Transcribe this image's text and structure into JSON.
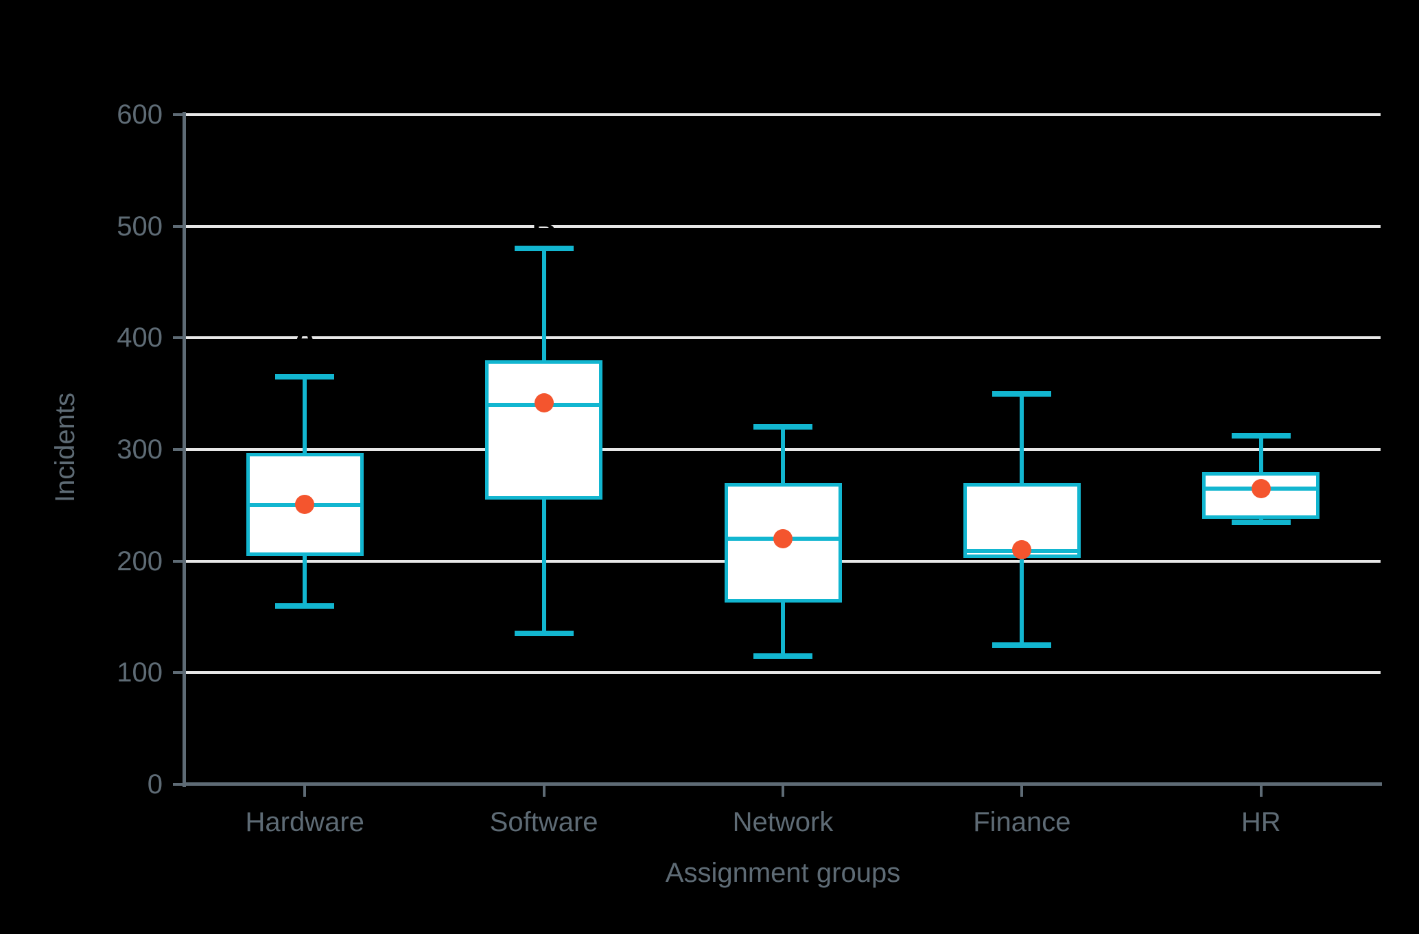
{
  "figure": {
    "background": "#000000",
    "ylabel": "Incidents",
    "xlabel": "Assignment groups"
  },
  "chart_data": {
    "type": "boxplot",
    "categories": [
      "Hardware",
      "Software",
      "Network",
      "Finance",
      "HR"
    ],
    "series": [
      {
        "name": "Hardware",
        "min": 160,
        "q1": 205,
        "median": 250,
        "q3": 297,
        "max": 365,
        "mean": 251
      },
      {
        "name": "Software",
        "min": 135,
        "q1": 255,
        "median": 340,
        "q3": 380,
        "max": 480,
        "mean": 342
      },
      {
        "name": "Network",
        "min": 115,
        "q1": 163,
        "median": 220,
        "q3": 270,
        "max": 320,
        "mean": 220
      },
      {
        "name": "Finance",
        "min": 125,
        "q1": 203,
        "median": 209,
        "q3": 270,
        "max": 350,
        "mean": 210
      },
      {
        "name": "HR",
        "min": 235,
        "q1": 238,
        "median": 265,
        "q3": 280,
        "max": 312,
        "mean": 265
      }
    ],
    "annotations": [
      {
        "category": "Hardware",
        "value": 400,
        "text": "A"
      },
      {
        "category": "Software",
        "value": 500,
        "text": "B"
      }
    ],
    "ylabel": "Incidents",
    "xlabel": "Assignment groups",
    "ylim": [
      0,
      600
    ],
    "y_ticks": [
      0,
      100,
      200,
      300,
      400,
      500,
      600
    ],
    "grid": "horizontal",
    "legend": "none",
    "colors": {
      "box_stroke": "#12b6d0",
      "box_fill": "#ffffff",
      "mean_dot": "#f4552e",
      "gridline": "#e7e7e7",
      "axis": "#5e6b75",
      "text": "#5e6b75",
      "annotation": "#000000",
      "background": "#000000"
    }
  }
}
